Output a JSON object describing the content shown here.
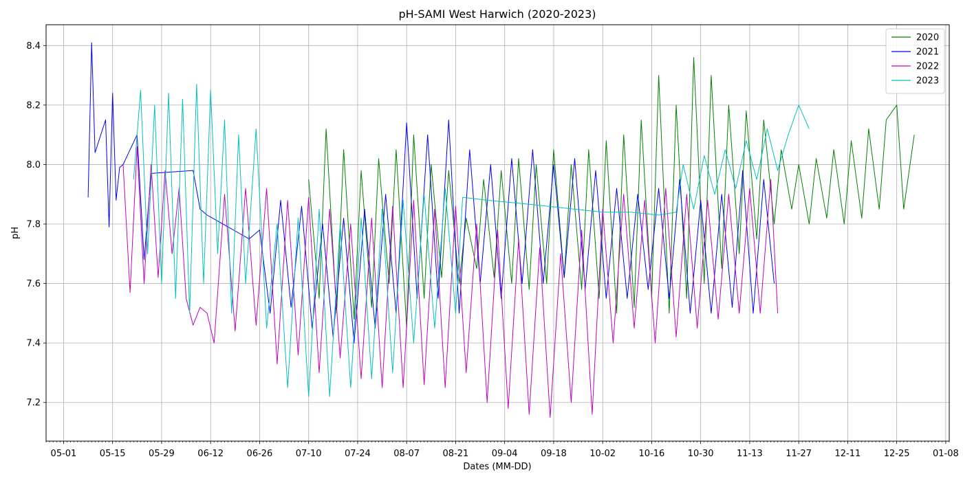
{
  "chart_data": {
    "type": "line",
    "title": "pH-SAMI West Harwich (2020-2023)",
    "xlabel": "Dates (MM-DD)",
    "ylabel": "pH",
    "x_unit": "MM-DD",
    "xlim": [
      "04-26",
      "01-09"
    ],
    "ylim": [
      7.07,
      8.47
    ],
    "x_ticks": [
      "05-01",
      "05-15",
      "05-29",
      "06-12",
      "06-26",
      "07-10",
      "07-24",
      "08-07",
      "08-21",
      "09-04",
      "09-18",
      "10-02",
      "10-16",
      "10-30",
      "11-13",
      "11-27",
      "12-11",
      "12-25",
      "01-08"
    ],
    "y_ticks": [
      7.2,
      7.4,
      7.6,
      7.8,
      8.0,
      8.2,
      8.4
    ],
    "grid": true,
    "legend_position": "top-right",
    "series": [
      {
        "name": "2020",
        "color": "#008000",
        "x": [
          "07-10",
          "07-13",
          "07-15",
          "07-18",
          "07-20",
          "07-23",
          "07-25",
          "07-28",
          "07-30",
          "08-02",
          "08-04",
          "08-07",
          "08-09",
          "08-12",
          "08-14",
          "08-17",
          "08-19",
          "08-22",
          "08-24",
          "08-27",
          "08-29",
          "09-01",
          "09-03",
          "09-06",
          "09-08",
          "09-11",
          "09-13",
          "09-16",
          "09-18",
          "09-21",
          "09-23",
          "09-26",
          "09-28",
          "10-01",
          "10-03",
          "10-06",
          "10-08",
          "10-11",
          "10-13",
          "10-16",
          "10-18",
          "10-21",
          "10-23",
          "10-26",
          "10-28",
          "10-31",
          "11-02",
          "11-05",
          "11-07",
          "11-10",
          "11-12",
          "11-15",
          "11-17",
          "11-20",
          "11-22",
          "11-25",
          "11-27",
          "11-30",
          "12-02",
          "12-05",
          "12-07",
          "12-10",
          "12-12",
          "12-15",
          "12-17",
          "12-20",
          "12-22",
          "12-25",
          "12-27",
          "12-30"
        ],
        "y": [
          7.95,
          7.55,
          8.12,
          7.5,
          8.05,
          7.48,
          7.98,
          7.52,
          8.02,
          7.6,
          8.05,
          7.45,
          8.1,
          7.55,
          8.0,
          7.62,
          7.98,
          7.6,
          7.82,
          7.65,
          7.95,
          7.62,
          7.98,
          7.6,
          8.02,
          7.58,
          8.0,
          7.6,
          8.05,
          7.62,
          8.0,
          7.58,
          8.05,
          7.55,
          8.08,
          7.5,
          8.1,
          7.52,
          8.15,
          7.55,
          8.3,
          7.5,
          8.2,
          7.55,
          8.36,
          7.6,
          8.3,
          7.65,
          8.2,
          7.7,
          8.18,
          7.75,
          8.15,
          7.8,
          8.05,
          7.85,
          8.0,
          7.8,
          8.02,
          7.82,
          8.05,
          7.8,
          8.08,
          7.82,
          8.12,
          7.85,
          8.15,
          8.2,
          7.85,
          8.1
        ]
      },
      {
        "name": "2021",
        "color": "#0000ee",
        "x": [
          "05-08",
          "05-09",
          "05-10",
          "05-13",
          "05-14",
          "05-15",
          "05-16",
          "05-17",
          "05-18",
          "05-20",
          "05-22",
          "05-24",
          "05-26",
          "06-07",
          "06-09",
          "06-11",
          "06-14",
          "06-17",
          "06-20",
          "06-23",
          "06-26",
          "06-29",
          "07-02",
          "07-05",
          "07-08",
          "07-11",
          "07-14",
          "07-17",
          "07-20",
          "07-23",
          "07-26",
          "07-29",
          "08-01",
          "08-04",
          "08-07",
          "08-10",
          "08-13",
          "08-16",
          "08-19",
          "08-22",
          "08-25",
          "08-28",
          "08-31",
          "09-03",
          "09-06",
          "09-09",
          "09-12",
          "09-15",
          "09-18",
          "09-21",
          "09-24",
          "09-27",
          "09-30",
          "10-03",
          "10-06",
          "10-09",
          "10-12",
          "10-15",
          "10-18",
          "10-21",
          "10-24",
          "10-27",
          "10-30",
          "11-02",
          "11-05",
          "11-08",
          "11-11",
          "11-14",
          "11-17",
          "11-20"
        ],
        "y": [
          7.89,
          8.41,
          8.04,
          8.15,
          7.79,
          8.24,
          7.88,
          7.99,
          8.0,
          8.05,
          8.1,
          7.68,
          7.97,
          7.98,
          7.85,
          7.83,
          7.81,
          7.79,
          7.77,
          7.75,
          7.78,
          7.5,
          7.88,
          7.52,
          7.86,
          7.45,
          7.8,
          7.42,
          7.82,
          7.4,
          7.85,
          7.45,
          7.9,
          7.5,
          8.14,
          7.55,
          8.1,
          7.55,
          8.15,
          7.5,
          8.05,
          7.6,
          8.0,
          7.55,
          8.02,
          7.6,
          8.05,
          7.6,
          8.0,
          7.62,
          8.02,
          7.58,
          7.98,
          7.55,
          7.92,
          7.55,
          7.9,
          7.58,
          7.92,
          7.55,
          7.95,
          7.5,
          7.88,
          7.5,
          7.9,
          7.52,
          7.98,
          7.5,
          7.95,
          7.6
        ]
      },
      {
        "name": "2022",
        "color": "#c000c0",
        "x": [
          "05-18",
          "05-20",
          "05-22",
          "05-24",
          "05-26",
          "05-28",
          "05-30",
          "06-01",
          "06-03",
          "06-05",
          "06-07",
          "06-09",
          "06-11",
          "06-13",
          "06-16",
          "06-19",
          "06-22",
          "06-25",
          "06-28",
          "07-01",
          "07-04",
          "07-07",
          "07-10",
          "07-13",
          "07-16",
          "07-19",
          "07-22",
          "07-25",
          "07-28",
          "07-31",
          "08-03",
          "08-06",
          "08-09",
          "08-12",
          "08-15",
          "08-18",
          "08-21",
          "08-24",
          "08-27",
          "08-30",
          "09-02",
          "09-05",
          "09-08",
          "09-11",
          "09-14",
          "09-17",
          "09-20",
          "09-23",
          "09-26",
          "09-29",
          "10-02",
          "10-05",
          "10-08",
          "10-11",
          "10-14",
          "10-17",
          "10-20",
          "10-23",
          "10-26",
          "10-29",
          "11-01",
          "11-04",
          "11-07",
          "11-10",
          "11-13",
          "11-16",
          "11-19",
          "11-21"
        ],
        "y": [
          8.0,
          7.57,
          8.06,
          7.6,
          8.0,
          7.62,
          7.98,
          7.7,
          7.92,
          7.55,
          7.46,
          7.52,
          7.5,
          7.4,
          7.9,
          7.44,
          7.92,
          7.46,
          7.92,
          7.33,
          7.88,
          7.36,
          7.89,
          7.3,
          7.85,
          7.35,
          7.8,
          7.28,
          7.82,
          7.25,
          7.86,
          7.25,
          7.88,
          7.26,
          7.85,
          7.25,
          7.86,
          7.3,
          7.8,
          7.2,
          7.78,
          7.18,
          7.75,
          7.16,
          7.72,
          7.15,
          7.7,
          7.2,
          7.78,
          7.16,
          7.85,
          7.4,
          7.9,
          7.45,
          7.88,
          7.4,
          7.92,
          7.42,
          7.9,
          7.45,
          7.88,
          7.48,
          7.9,
          7.5,
          7.92,
          7.5,
          7.95,
          7.5
        ]
      },
      {
        "name": "2023",
        "color": "#00c0c0",
        "x": [
          "05-21",
          "05-23",
          "05-25",
          "05-27",
          "05-29",
          "05-31",
          "06-02",
          "06-04",
          "06-06",
          "06-08",
          "06-10",
          "06-12",
          "06-14",
          "06-16",
          "06-18",
          "06-20",
          "06-22",
          "06-25",
          "06-28",
          "07-01",
          "07-04",
          "07-07",
          "07-10",
          "07-13",
          "07-16",
          "07-19",
          "07-22",
          "07-25",
          "07-28",
          "07-31",
          "08-03",
          "08-06",
          "08-09",
          "08-12",
          "08-15",
          "08-18",
          "08-21",
          "08-23",
          "08-30",
          "09-08",
          "09-16",
          "09-24",
          "10-02",
          "10-10",
          "10-18",
          "10-23",
          "10-25",
          "10-28",
          "10-31",
          "11-03",
          "11-06",
          "11-09",
          "11-12",
          "11-15",
          "11-18",
          "11-21",
          "11-24",
          "11-27",
          "11-30"
        ],
        "y": [
          7.95,
          8.25,
          7.7,
          8.2,
          7.6,
          8.24,
          7.55,
          8.22,
          7.5,
          8.27,
          7.6,
          8.25,
          7.7,
          8.15,
          7.5,
          8.1,
          7.6,
          8.12,
          7.45,
          7.8,
          7.25,
          7.82,
          7.22,
          7.85,
          7.22,
          7.8,
          7.25,
          7.82,
          7.28,
          7.85,
          7.3,
          7.88,
          7.4,
          7.9,
          7.45,
          7.92,
          7.5,
          7.89,
          7.88,
          7.87,
          7.86,
          7.85,
          7.84,
          7.84,
          7.83,
          7.84,
          8.0,
          7.85,
          8.03,
          7.9,
          8.05,
          7.92,
          8.08,
          7.95,
          8.12,
          7.98,
          8.1,
          8.2,
          8.12
        ]
      }
    ]
  }
}
